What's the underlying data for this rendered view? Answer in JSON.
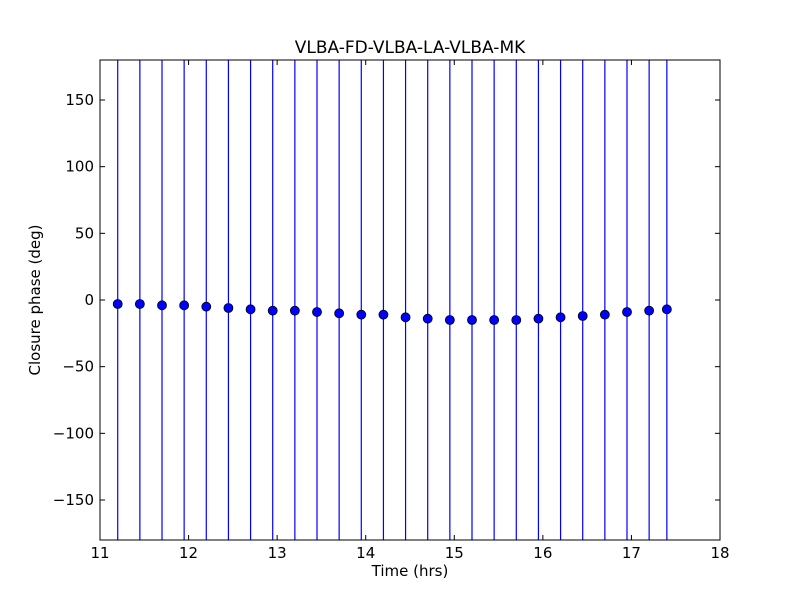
{
  "chart_data": {
    "type": "scatter",
    "title": "VLBA-FD-VLBA-LA-VLBA-MK",
    "xlabel": "Time (hrs)",
    "ylabel": "Closure phase (deg)",
    "xlim": [
      11,
      18
    ],
    "ylim": [
      -180,
      180
    ],
    "x_ticks": [
      "11",
      "12",
      "13",
      "14",
      "15",
      "16",
      "17",
      "18"
    ],
    "y_ticks": [
      "−150",
      "−100",
      "−50",
      "0",
      "50",
      "100",
      "150"
    ],
    "grid": false,
    "legend": "none",
    "marker_color": "#0000ff",
    "errorbar_color": "#0000ff",
    "series": [
      {
        "x": [
          11.2,
          11.45,
          11.7,
          11.95,
          12.2,
          12.45,
          12.7,
          12.95,
          13.2,
          13.45,
          13.7,
          13.95,
          14.2,
          14.45,
          14.7,
          14.95,
          15.2,
          15.45,
          15.7,
          15.95,
          16.2,
          16.45,
          16.7,
          16.95,
          17.2,
          17.4
        ],
        "y": [
          -3,
          -3,
          -4,
          -4,
          -5,
          -6,
          -7,
          -8,
          -8,
          -9,
          -10,
          -11,
          -11,
          -13,
          -14,
          -15,
          -15,
          -15,
          -15,
          -14,
          -13,
          -12,
          -11,
          -9,
          -8,
          -7
        ],
        "err_low": [
          -180,
          -180,
          -180,
          -180,
          -180,
          -180,
          -180,
          -180,
          -180,
          -180,
          -180,
          -180,
          -180,
          -180,
          -180,
          -180,
          -180,
          -180,
          -180,
          -180,
          -180,
          -180,
          -180,
          -180,
          -180,
          -180
        ],
        "err_high": [
          180,
          180,
          180,
          180,
          180,
          180,
          180,
          180,
          180,
          180,
          180,
          180,
          180,
          180,
          180,
          180,
          180,
          180,
          180,
          180,
          180,
          180,
          180,
          180,
          180,
          180
        ]
      }
    ]
  }
}
